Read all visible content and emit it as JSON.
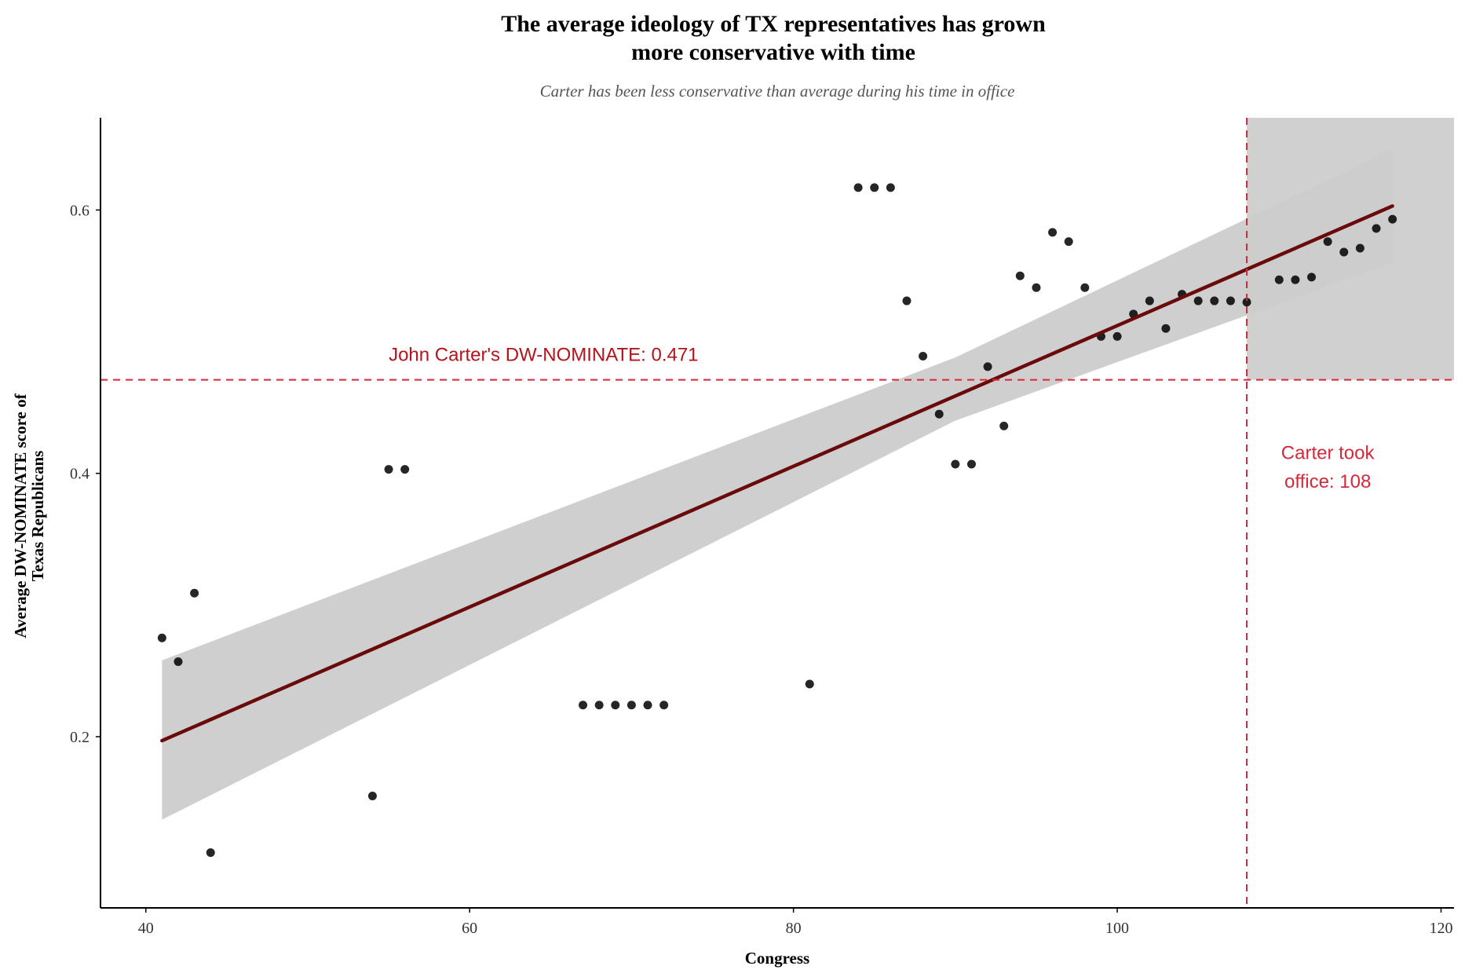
{
  "chart_data": {
    "type": "scatter",
    "title": [
      "The average ideology of TX representatives has grown",
      "more conservative with time"
    ],
    "subtitle": "Carter has been less conservative than average during his time in office",
    "xlabel": "Congress",
    "ylabel": [
      "Average DW-NOMINATE score of",
      "Texas Republicans"
    ],
    "xlim": [
      37.2,
      120.8
    ],
    "ylim": [
      0.07,
      0.67
    ],
    "xticks": [
      40,
      60,
      80,
      100,
      120
    ],
    "yticks": [
      0.2,
      0.4,
      0.6
    ],
    "grid": false,
    "legend": "none",
    "points": [
      {
        "x": 41,
        "y": 0.275
      },
      {
        "x": 42,
        "y": 0.257
      },
      {
        "x": 43,
        "y": 0.309
      },
      {
        "x": 44,
        "y": 0.112
      },
      {
        "x": 54,
        "y": 0.155
      },
      {
        "x": 55,
        "y": 0.403
      },
      {
        "x": 56,
        "y": 0.403
      },
      {
        "x": 67,
        "y": 0.224
      },
      {
        "x": 68,
        "y": 0.224
      },
      {
        "x": 69,
        "y": 0.224
      },
      {
        "x": 70,
        "y": 0.224
      },
      {
        "x": 71,
        "y": 0.224
      },
      {
        "x": 72,
        "y": 0.224
      },
      {
        "x": 81,
        "y": 0.24
      },
      {
        "x": 84,
        "y": 0.617
      },
      {
        "x": 85,
        "y": 0.617
      },
      {
        "x": 86,
        "y": 0.617
      },
      {
        "x": 87,
        "y": 0.531
      },
      {
        "x": 88,
        "y": 0.489
      },
      {
        "x": 89,
        "y": 0.445
      },
      {
        "x": 90,
        "y": 0.407
      },
      {
        "x": 91,
        "y": 0.407
      },
      {
        "x": 92,
        "y": 0.481
      },
      {
        "x": 93,
        "y": 0.436
      },
      {
        "x": 94,
        "y": 0.55
      },
      {
        "x": 95,
        "y": 0.541
      },
      {
        "x": 96,
        "y": 0.583
      },
      {
        "x": 97,
        "y": 0.576
      },
      {
        "x": 98,
        "y": 0.541
      },
      {
        "x": 99,
        "y": 0.504
      },
      {
        "x": 100,
        "y": 0.504
      },
      {
        "x": 101,
        "y": 0.521
      },
      {
        "x": 102,
        "y": 0.531
      },
      {
        "x": 103,
        "y": 0.51
      },
      {
        "x": 104,
        "y": 0.536
      },
      {
        "x": 105,
        "y": 0.531
      },
      {
        "x": 106,
        "y": 0.531
      },
      {
        "x": 107,
        "y": 0.531
      },
      {
        "x": 108,
        "y": 0.53
      },
      {
        "x": 110,
        "y": 0.547
      },
      {
        "x": 111,
        "y": 0.547
      },
      {
        "x": 112,
        "y": 0.549
      },
      {
        "x": 113,
        "y": 0.576
      },
      {
        "x": 114,
        "y": 0.568
      },
      {
        "x": 115,
        "y": 0.571
      },
      {
        "x": 116,
        "y": 0.586
      },
      {
        "x": 117,
        "y": 0.593
      }
    ],
    "trend": {
      "x_start": 41,
      "x_end": 117,
      "y_start": 0.197,
      "y_end": 0.603,
      "ci_start": [
        0.137,
        0.258
      ],
      "ci_mid": [
        0.44,
        0.488
      ],
      "ci_mid_x": 90,
      "ci_end": [
        0.56,
        0.646
      ],
      "color": "#6b0a0a",
      "ci_color": "#cccccc"
    },
    "reference_lines": {
      "hline": {
        "y": 0.471,
        "label": "John Carter's DW-NOMINATE: 0.471",
        "color": "#d3293a"
      },
      "vline": {
        "x": 108,
        "label": [
          "Carter took",
          "office: 108"
        ],
        "color": "#d3293a"
      }
    },
    "shaded_region": {
      "x_from": 108,
      "y_from": 0.471,
      "color": "#b3b3b3"
    }
  }
}
